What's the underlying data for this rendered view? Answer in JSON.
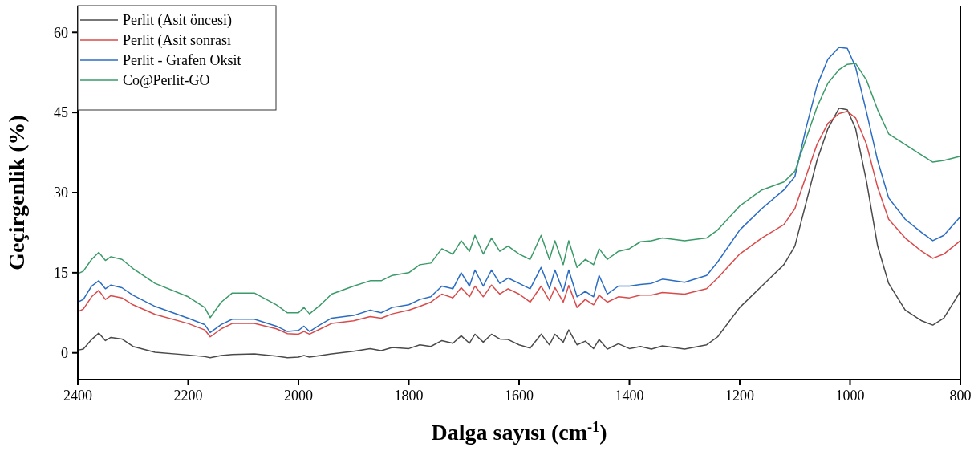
{
  "chart_data": {
    "type": "line",
    "xlabel": "Dalga sayısı (cm$^{-1}$)",
    "ylabel": "Geçirgenlik (%)",
    "xlim": [
      2400,
      800
    ],
    "ylim": [
      -5,
      65
    ],
    "xticks": [
      2400,
      2200,
      2000,
      1800,
      1600,
      1400,
      1200,
      1000,
      800
    ],
    "yticks": [
      0,
      15,
      30,
      45,
      60
    ],
    "legend": "top left",
    "grid": false,
    "marker": "none",
    "line_style": "solid",
    "x": [
      2400,
      2390,
      2375,
      2362,
      2350,
      2340,
      2320,
      2300,
      2260,
      2200,
      2170,
      2160,
      2140,
      2120,
      2080,
      2040,
      2020,
      2000,
      1990,
      1980,
      1960,
      1940,
      1900,
      1870,
      1850,
      1830,
      1800,
      1780,
      1760,
      1740,
      1720,
      1705,
      1690,
      1680,
      1665,
      1650,
      1635,
      1620,
      1600,
      1580,
      1560,
      1545,
      1535,
      1520,
      1510,
      1495,
      1480,
      1465,
      1455,
      1440,
      1420,
      1400,
      1380,
      1360,
      1340,
      1300,
      1260,
      1240,
      1200,
      1160,
      1120,
      1100,
      1080,
      1060,
      1040,
      1020,
      1005,
      990,
      970,
      950,
      930,
      900,
      870,
      850,
      830,
      800
    ],
    "series": [
      {
        "name": "Perlit (Asit öncesi)",
        "color": "#4a4a4a",
        "values": [
          0.5,
          0.7,
          2.5,
          3.7,
          2.3,
          2.9,
          2.6,
          1.2,
          0.1,
          -0.4,
          -0.7,
          -0.9,
          -0.5,
          -0.3,
          -0.2,
          -0.6,
          -0.9,
          -0.8,
          -0.5,
          -0.8,
          -0.5,
          -0.2,
          0.3,
          0.8,
          0.4,
          1,
          0.8,
          1.5,
          1.2,
          2.3,
          1.8,
          3.2,
          1.8,
          3.5,
          2,
          3.5,
          2.6,
          2.5,
          1.5,
          0.9,
          3.5,
          1.5,
          3.5,
          2,
          4.3,
          1.5,
          2.2,
          0.8,
          2.5,
          0.7,
          1.7,
          0.8,
          1.2,
          0.7,
          1.3,
          0.7,
          1.5,
          3,
          8.5,
          12.5,
          16.5,
          20,
          28,
          36,
          42,
          45.8,
          45.5,
          42,
          32,
          20,
          13,
          8,
          6,
          5.2,
          6.5,
          11.5
        ]
      },
      {
        "name": "Perlit (Asit sonrası",
        "color": "#d94a4a",
        "values": [
          7.7,
          8.2,
          10.5,
          11.7,
          10,
          10.7,
          10.3,
          9,
          7.2,
          5.5,
          4.3,
          3,
          4.5,
          5.5,
          5.5,
          4.5,
          3.6,
          3.5,
          4,
          3.5,
          4.5,
          5.5,
          6,
          6.8,
          6.5,
          7.3,
          8,
          8.7,
          9.5,
          11,
          10.3,
          12.2,
          10.5,
          12.5,
          10.5,
          12.7,
          11,
          12,
          11,
          9.5,
          12.5,
          9.8,
          12.2,
          9.5,
          12.6,
          8.5,
          10,
          9,
          10.8,
          9.5,
          10.5,
          10.3,
          10.8,
          10.8,
          11.3,
          11,
          12,
          14,
          18.5,
          21.5,
          24,
          27,
          33,
          39,
          43,
          44.8,
          45.2,
          44,
          39,
          31,
          25,
          21.5,
          19,
          17.7,
          18.5,
          21
        ]
      },
      {
        "name": "Perlit - Grafen Oksit",
        "color": "#2a6cc4",
        "values": [
          9.5,
          10,
          12.5,
          13.5,
          12,
          12.7,
          12.2,
          10.8,
          8.7,
          6.5,
          5.3,
          3.8,
          5.3,
          6.3,
          6.3,
          5,
          4,
          4.2,
          5,
          4,
          5.3,
          6.5,
          7,
          8,
          7.5,
          8.5,
          9,
          10,
          10.5,
          12.5,
          12,
          15,
          12.5,
          15.5,
          12.5,
          15.5,
          13,
          14,
          13,
          12,
          16,
          12,
          15.5,
          11.5,
          15.5,
          10.5,
          11.5,
          10.5,
          14.5,
          11,
          12.5,
          12.5,
          12.8,
          13,
          13.8,
          13.2,
          14.5,
          17,
          23,
          27,
          30.5,
          33,
          42,
          50,
          55,
          57.2,
          57,
          53.5,
          45,
          36,
          29,
          25,
          22.5,
          21,
          22,
          25.5
        ]
      },
      {
        "name": "Co@Perlit-GO",
        "color": "#3a9a68",
        "values": [
          14.8,
          15.3,
          17.5,
          18.8,
          17.3,
          18,
          17.5,
          15.8,
          13,
          10.5,
          8.5,
          6.6,
          9.5,
          11.2,
          11.2,
          9,
          7.5,
          7.5,
          8.5,
          7.3,
          9,
          11,
          12.5,
          13.5,
          13.5,
          14.5,
          15,
          16.5,
          16.8,
          19.5,
          18.5,
          21,
          19,
          22,
          18.5,
          21.5,
          19,
          20,
          18.5,
          17.5,
          22,
          17.5,
          21,
          16.5,
          21,
          16,
          17.5,
          16.5,
          19.5,
          17.5,
          19,
          19.5,
          20.8,
          21,
          21.5,
          21,
          21.5,
          23,
          27.5,
          30.5,
          32,
          34,
          40,
          46,
          50.5,
          53,
          54,
          54.2,
          51,
          45.5,
          41,
          39,
          37,
          35.7,
          36,
          36.8
        ]
      }
    ]
  }
}
